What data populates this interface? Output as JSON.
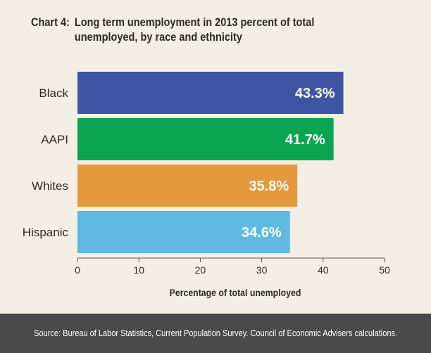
{
  "title": {
    "number": "Chart 4:",
    "text": "Long term unemployment in 2013 percent of total unemployed, by race and ethnicity"
  },
  "chart_data": {
    "type": "bar",
    "orientation": "horizontal",
    "categories": [
      "Black",
      "AAPI",
      "Whites",
      "Hispanic"
    ],
    "values": [
      43.3,
      41.7,
      35.8,
      34.6
    ],
    "data_labels": [
      "43.3%",
      "41.7%",
      "35.8%",
      "34.6%"
    ],
    "bar_colors": [
      "#3f55a3",
      "#0aa452",
      "#e49a3c",
      "#5fb9e0"
    ],
    "xlabel": "Percentage of total unemployed",
    "ylabel": "",
    "xlim": [
      0,
      50
    ],
    "xticks": [
      0,
      10,
      20,
      30,
      40,
      50
    ],
    "grid": false,
    "legend": "none"
  },
  "footer": {
    "source": "Source: Bureau of Labor Statistics, Current Population Survey. Council of Economic Advisers calculations."
  }
}
